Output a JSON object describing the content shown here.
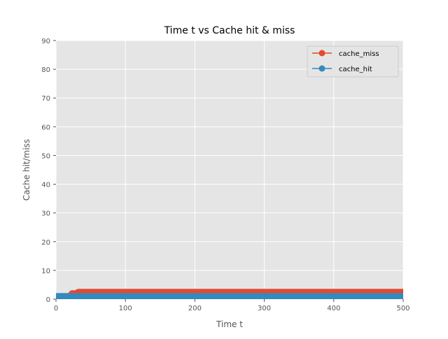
{
  "chart_data": {
    "type": "line",
    "title": "Time t vs Cache hit & miss",
    "xlabel": "Time t",
    "ylabel": "Cache hit/miss",
    "xlim": [
      0,
      500
    ],
    "ylim": [
      0,
      90
    ],
    "xticks": [
      0,
      100,
      200,
      300,
      400,
      500
    ],
    "yticks": [
      0,
      10,
      20,
      30,
      40,
      50,
      60,
      70,
      80,
      90
    ],
    "grid": true,
    "legend_position": "top-right",
    "colors": {
      "cache_miss": "#E24A33",
      "cache_hit": "#348ABD",
      "plot_background": "#E5E5E5",
      "grid": "#FFFFFF"
    },
    "series": [
      {
        "name": "cache_miss",
        "color": "#E24A33",
        "description_points": [
          [
            0,
            1
          ],
          [
            20,
            1
          ],
          [
            23,
            2
          ],
          [
            30,
            2
          ],
          [
            32,
            2.5
          ],
          [
            500,
            2.5
          ]
        ]
      },
      {
        "name": "cache_hit",
        "color": "#348ABD",
        "description_points": [
          [
            0,
            1
          ],
          [
            500,
            1
          ]
        ]
      }
    ]
  }
}
